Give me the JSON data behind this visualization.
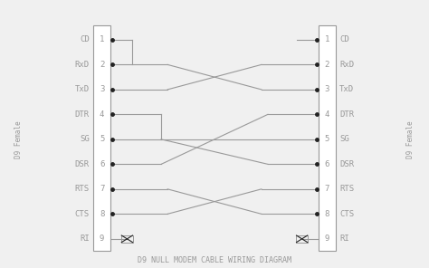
{
  "title": "D9 NULL MODEM CABLE WIRING DIAGRAM",
  "left_labels": [
    "CD",
    "RxD",
    "TxD",
    "DTR",
    "SG",
    "DSR",
    "RTS",
    "CTS",
    "RI"
  ],
  "right_labels": [
    "CD",
    "RxD",
    "TxD",
    "DTR",
    "SG",
    "DSR",
    "RTS",
    "CTS",
    "RI"
  ],
  "pin_numbers": [
    1,
    2,
    3,
    4,
    5,
    6,
    7,
    8,
    9
  ],
  "bg_color": "#f0f0f0",
  "line_color": "#999999",
  "dot_color": "#222222",
  "text_color": "#999999",
  "box_color": "#ffffff",
  "side_label_left": "D9 Female",
  "side_label_right": "D9 Female"
}
